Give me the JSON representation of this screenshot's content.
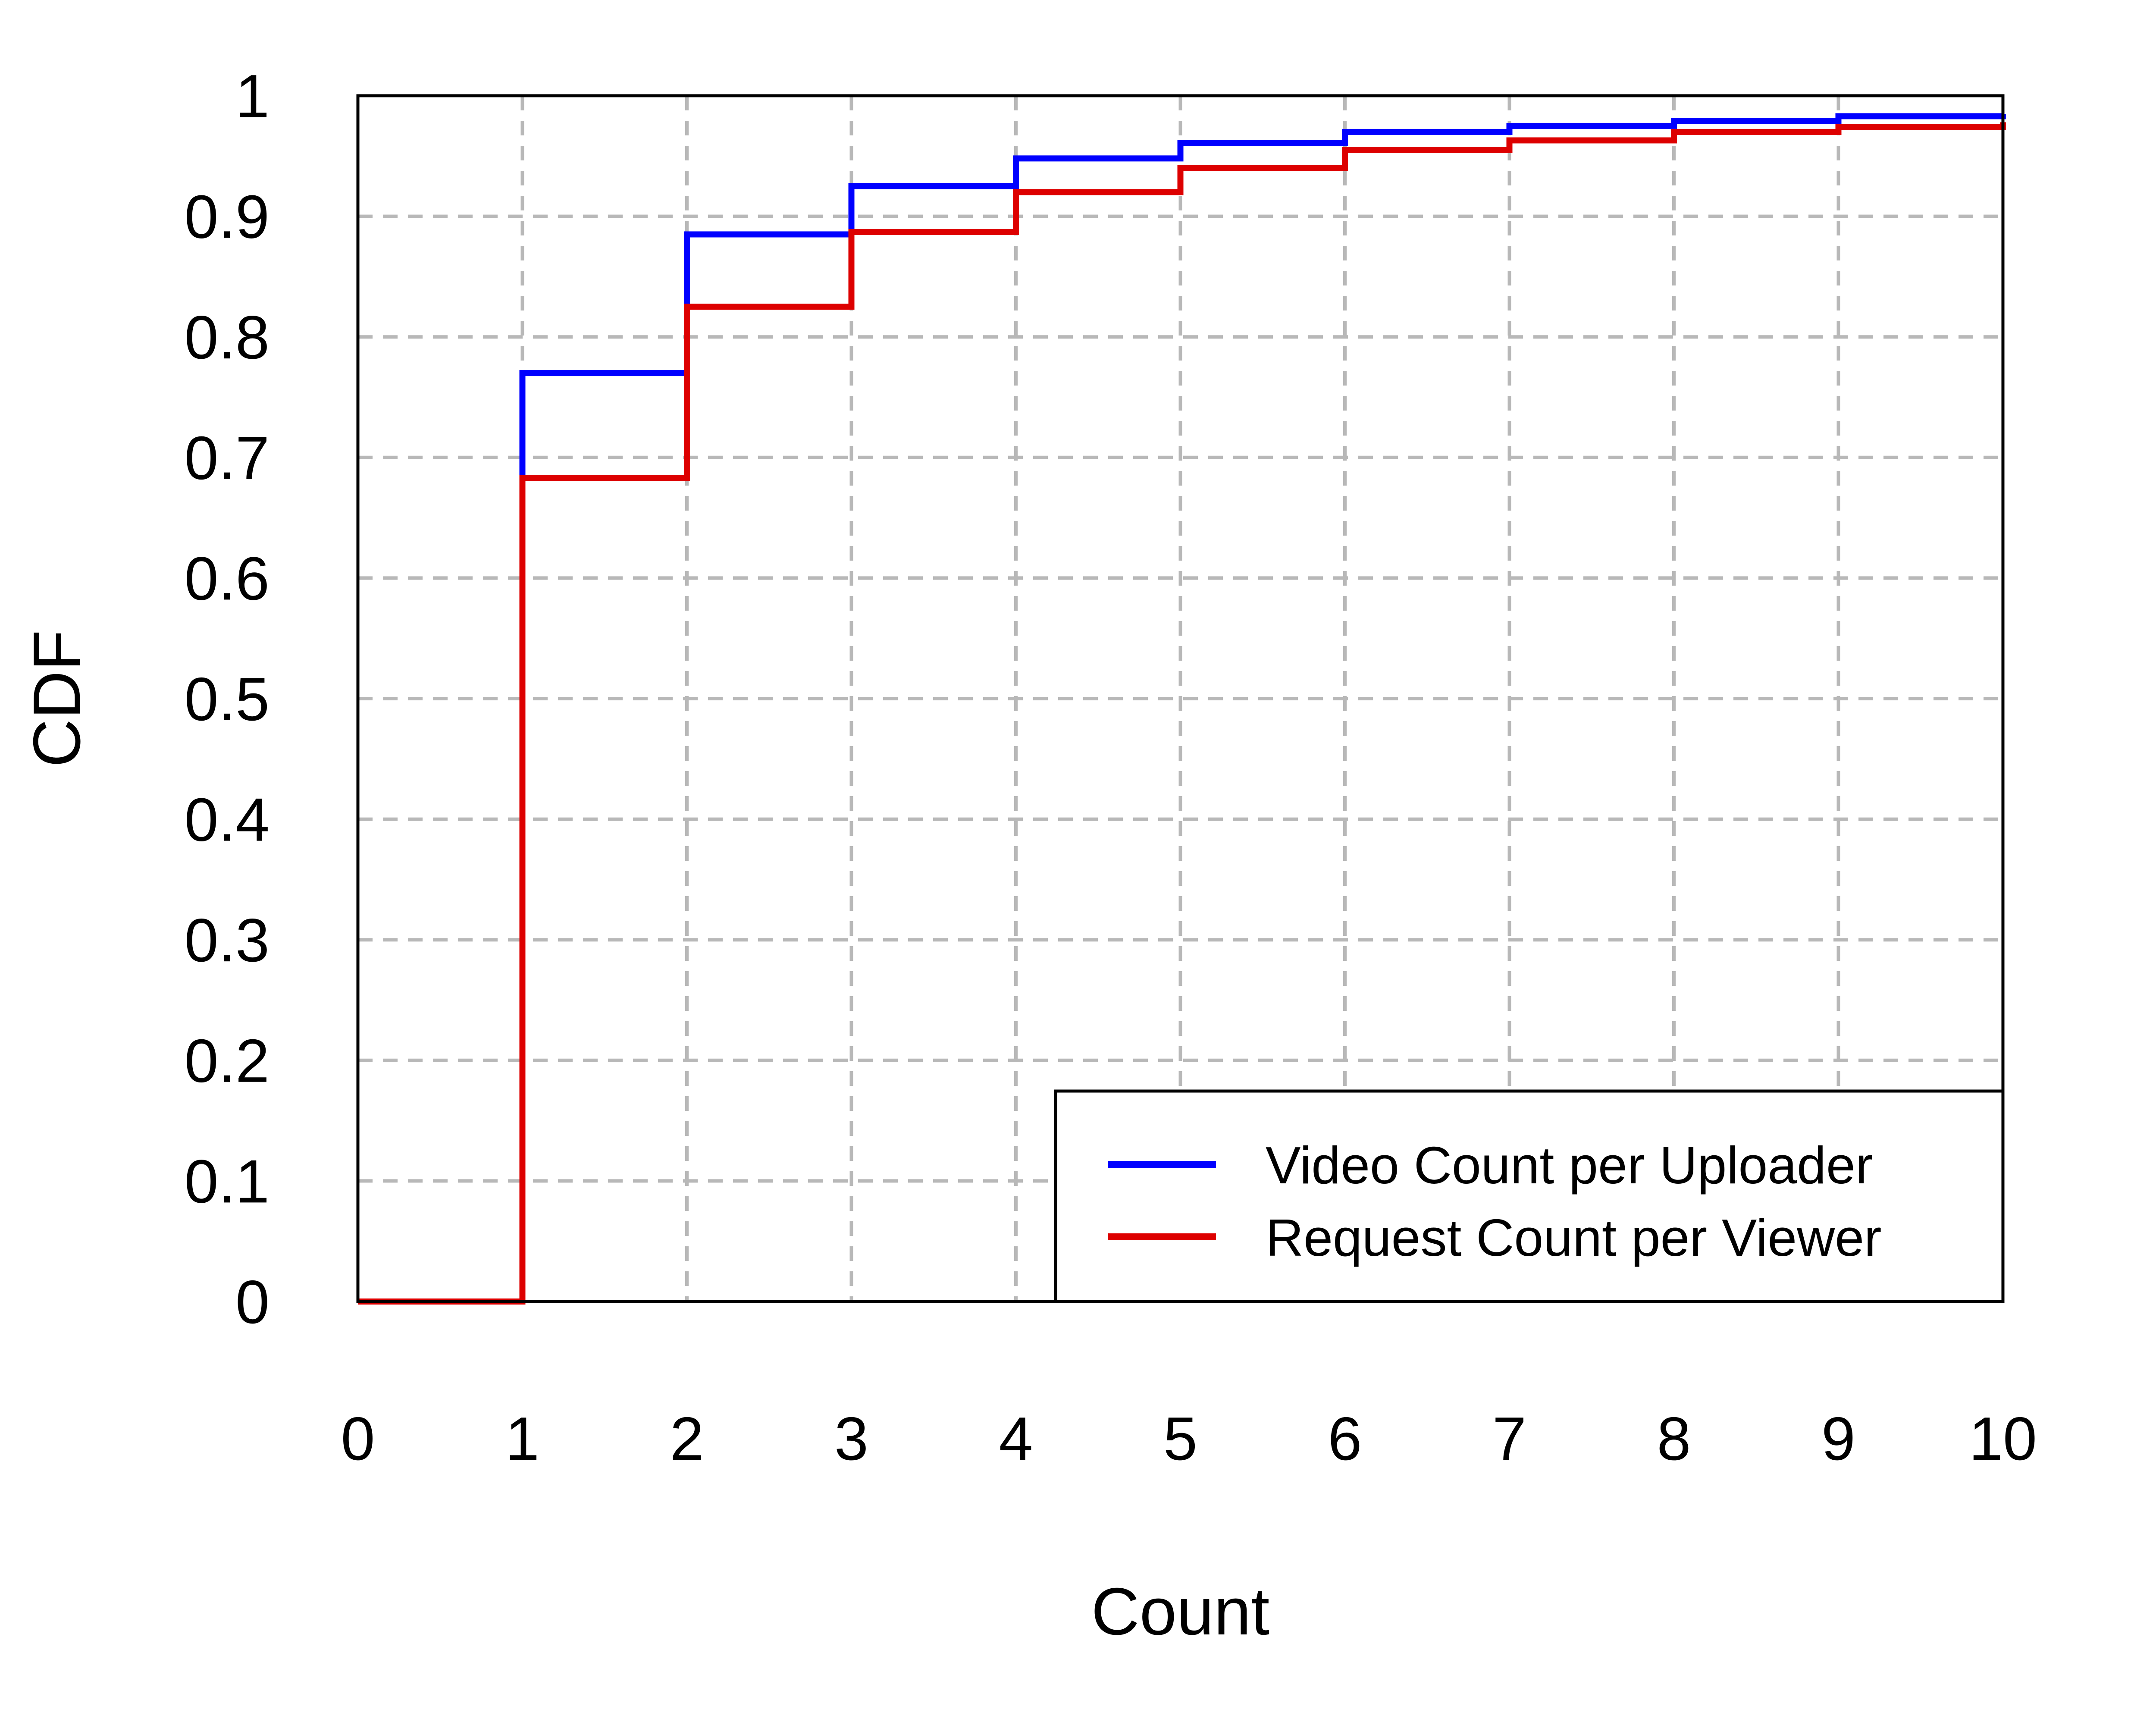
{
  "chart_data": {
    "type": "line",
    "step": true,
    "title": "",
    "xlabel": "Count",
    "ylabel": "CDF",
    "xlim": [
      0,
      10
    ],
    "ylim": [
      0,
      1
    ],
    "x_ticks": [
      0,
      1,
      2,
      3,
      4,
      5,
      6,
      7,
      8,
      9,
      10
    ],
    "y_ticks": [
      0,
      0.1,
      0.2,
      0.3,
      0.4,
      0.5,
      0.6,
      0.7,
      0.8,
      0.9,
      1
    ],
    "x_tick_labels": [
      "0",
      "1",
      "2",
      "3",
      "4",
      "5",
      "6",
      "7",
      "8",
      "9",
      "10"
    ],
    "y_tick_labels": [
      "0",
      "0.1",
      "0.2",
      "0.3",
      "0.4",
      "0.5",
      "0.6",
      "0.7",
      "0.8",
      "0.9",
      "1"
    ],
    "grid": true,
    "legend_position": "bottom-right",
    "series": [
      {
        "name": "Video Count per Uploader",
        "color": "#0000ff",
        "x": [
          0,
          1,
          2,
          3,
          4,
          5,
          6,
          7,
          8,
          9,
          10
        ],
        "y": [
          0,
          0.77,
          0.885,
          0.925,
          0.948,
          0.961,
          0.97,
          0.975,
          0.979,
          0.983,
          0.985
        ]
      },
      {
        "name": "Request Count per Viewer",
        "color": "#dd0000",
        "x": [
          0,
          1,
          2,
          3,
          4,
          5,
          6,
          7,
          8,
          9,
          10
        ],
        "y": [
          0,
          0.683,
          0.825,
          0.887,
          0.92,
          0.94,
          0.955,
          0.963,
          0.97,
          0.974,
          0.978
        ]
      }
    ]
  }
}
